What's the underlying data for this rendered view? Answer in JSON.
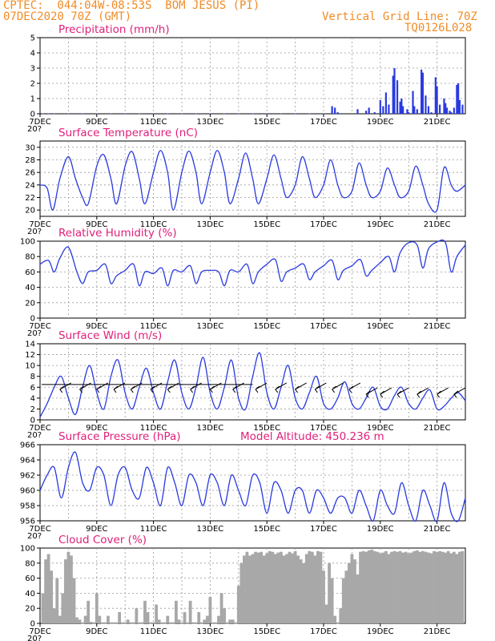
{
  "header": {
    "line1": "CPTEC:  044:04W-08:53S  BOM JESUS (PI)",
    "line2_left": "07DEC2020 70Z (GMT)",
    "line2_right": "Vertical Grid Line: 70Z",
    "line3_right": "TQ0126L028"
  },
  "colors": {
    "accent": "#f08c28",
    "title": "#e0207a",
    "series": "#2a3adf",
    "cloud": "#a8a8a8"
  },
  "x_tick_labels": [
    "7DEC",
    "9DEC",
    "11DEC",
    "13DEC",
    "15DEC",
    "17DEC",
    "19DEC",
    "21DEC"
  ],
  "panel_corner_label": "20?",
  "chart_data": [
    {
      "type": "bar",
      "title": "Precipitation (mm/h)",
      "ylim": [
        0,
        5
      ],
      "yticks": [
        0,
        1,
        2,
        3,
        4,
        5
      ],
      "x_unit": "days since 7DEC 00Z",
      "x": [
        0.1,
        0.3,
        0.5,
        1.0,
        1.5,
        2.0,
        2.5,
        3.0,
        3.5,
        4.0,
        4.5,
        5.0,
        5.5,
        6.0,
        6.5,
        7.0,
        7.5,
        8.0,
        8.5,
        9.0,
        9.5,
        10.0,
        10.3,
        10.4,
        10.5,
        11.2,
        11.5,
        11.6,
        11.8,
        12.0,
        12.1,
        12.2,
        12.3,
        12.45,
        12.5,
        12.6,
        12.7,
        12.75,
        12.8,
        12.95,
        13.0,
        13.15,
        13.2,
        13.3,
        13.45,
        13.5,
        13.6,
        13.7,
        13.8,
        13.95,
        14.0,
        14.1,
        14.25,
        14.3,
        14.35,
        14.45,
        14.5,
        14.6,
        14.7,
        14.75,
        14.8,
        14.9
      ],
      "values": [
        0.02,
        0.02,
        0.02,
        0.02,
        0.02,
        0.02,
        0.02,
        0.02,
        0.02,
        0.02,
        0.02,
        0.02,
        0.02,
        0.02,
        0.02,
        0.02,
        0.02,
        0.02,
        0.02,
        0.02,
        0.02,
        0.02,
        0.5,
        0.4,
        0.1,
        0.3,
        0.2,
        0.4,
        0.1,
        0.9,
        0.5,
        1.4,
        0.6,
        2.5,
        3.0,
        2.2,
        0.8,
        1.0,
        0.5,
        0.3,
        0.1,
        1.5,
        0.5,
        0.3,
        2.9,
        2.7,
        1.2,
        0.5,
        0.1,
        2.4,
        1.8,
        0.6,
        1.0,
        0.7,
        0.4,
        0.2,
        0.1,
        0.4,
        1.9,
        2.0,
        0.9,
        0.6
      ],
      "xlim": [
        0,
        15
      ]
    },
    {
      "type": "line",
      "title": "Surface Temperature (nC)",
      "ylim": [
        19,
        31
      ],
      "yticks": [
        20,
        22,
        24,
        26,
        28,
        30
      ],
      "x_unit": "days since 7DEC 00Z",
      "x": [
        0.0,
        0.25,
        0.45,
        0.7,
        1.0,
        1.25,
        1.5,
        1.7,
        2.0,
        2.25,
        2.5,
        2.7,
        3.0,
        3.25,
        3.5,
        3.7,
        4.0,
        4.25,
        4.5,
        4.7,
        5.0,
        5.25,
        5.5,
        5.7,
        6.0,
        6.25,
        6.5,
        6.7,
        7.0,
        7.25,
        7.5,
        7.7,
        8.0,
        8.25,
        8.5,
        8.7,
        9.0,
        9.25,
        9.5,
        9.7,
        10.0,
        10.25,
        10.5,
        10.7,
        11.0,
        11.25,
        11.5,
        11.7,
        12.0,
        12.25,
        12.5,
        12.7,
        13.0,
        13.25,
        13.5,
        13.7,
        14.0,
        14.25,
        14.5,
        14.7,
        15.0
      ],
      "values": [
        24,
        23.5,
        20,
        25,
        28.5,
        25,
        22,
        21,
        27,
        28.8,
        25,
        21,
        27,
        29.3,
        25,
        21,
        26,
        29.5,
        26,
        20,
        26,
        29.4,
        26,
        21,
        26,
        29.5,
        26,
        21,
        25,
        29.1,
        25,
        21,
        25,
        28.8,
        25,
        22,
        24,
        28.5,
        25,
        22,
        24,
        28,
        24,
        22,
        23,
        27.5,
        24,
        22,
        23,
        26.7,
        24,
        22,
        23,
        27,
        24,
        21,
        20,
        26.8,
        24,
        23,
        24
      ]
    },
    {
      "type": "line",
      "title": "Relative Humidity (%)",
      "ylim": [
        0,
        100
      ],
      "yticks": [
        0,
        20,
        40,
        60,
        80,
        100
      ],
      "x_unit": "days since 7DEC 00Z",
      "x": [
        0.0,
        0.3,
        0.5,
        0.7,
        1.0,
        1.3,
        1.5,
        1.7,
        2.0,
        2.3,
        2.5,
        2.7,
        3.0,
        3.3,
        3.5,
        3.7,
        4.0,
        4.3,
        4.5,
        4.7,
        5.0,
        5.3,
        5.5,
        5.7,
        6.0,
        6.3,
        6.5,
        6.7,
        7.0,
        7.3,
        7.5,
        7.7,
        8.0,
        8.3,
        8.5,
        8.7,
        9.0,
        9.3,
        9.5,
        9.7,
        10.0,
        10.3,
        10.5,
        10.7,
        11.0,
        11.3,
        11.5,
        11.7,
        12.0,
        12.3,
        12.5,
        12.7,
        13.0,
        13.3,
        13.5,
        13.7,
        14.0,
        14.3,
        14.5,
        14.7,
        15.0
      ],
      "values": [
        70,
        75,
        60,
        78,
        92,
        60,
        45,
        60,
        62,
        70,
        45,
        55,
        62,
        70,
        42,
        60,
        58,
        65,
        42,
        62,
        60,
        68,
        45,
        60,
        62,
        60,
        42,
        62,
        60,
        70,
        45,
        60,
        70,
        76,
        48,
        60,
        65,
        70,
        50,
        60,
        68,
        75,
        50,
        62,
        68,
        76,
        55,
        62,
        72,
        80,
        60,
        85,
        98,
        95,
        65,
        90,
        99,
        98,
        60,
        80,
        95
      ]
    },
    {
      "type": "line",
      "title": "Surface Wind (m/s)",
      "ylim": [
        0,
        14
      ],
      "yticks": [
        0,
        2,
        4,
        6,
        8,
        10,
        12,
        14
      ],
      "x_unit": "days since 7DEC 00Z",
      "x": [
        0.0,
        0.25,
        0.5,
        0.75,
        1.0,
        1.25,
        1.5,
        1.75,
        2.0,
        2.25,
        2.5,
        2.75,
        3.0,
        3.25,
        3.5,
        3.75,
        4.0,
        4.25,
        4.5,
        4.75,
        5.0,
        5.25,
        5.5,
        5.75,
        6.0,
        6.25,
        6.5,
        6.75,
        7.0,
        7.25,
        7.5,
        7.75,
        8.0,
        8.25,
        8.5,
        8.75,
        9.0,
        9.25,
        9.5,
        9.75,
        10.0,
        10.25,
        10.5,
        10.75,
        11.0,
        11.25,
        11.5,
        11.75,
        12.0,
        12.25,
        12.5,
        12.75,
        13.0,
        13.25,
        13.5,
        13.75,
        14.0,
        14.25,
        14.5,
        14.75,
        15.0
      ],
      "values": [
        0.5,
        3,
        6,
        8,
        4,
        1,
        6,
        10,
        5,
        2,
        8,
        11,
        5,
        2,
        6,
        9.5,
        5,
        2,
        7,
        11,
        5,
        2,
        6,
        11.5,
        5,
        2,
        6,
        11,
        4,
        2,
        8,
        12.3,
        5,
        2,
        6,
        10,
        4,
        2,
        5,
        8,
        3,
        2,
        4,
        7,
        3,
        2,
        4,
        6,
        2.5,
        2,
        4.5,
        6,
        3,
        2,
        4,
        5.5,
        2,
        2.5,
        4,
        5,
        3.5
      ],
      "barb_x": [
        0.7,
        1.4,
        2.0,
        2.6,
        3.2,
        3.9,
        4.5,
        5.3,
        6.0,
        6.8,
        7.6,
        8.3,
        9.0,
        9.7,
        10.3,
        10.9,
        11.5,
        12.0,
        12.6,
        13.3,
        14.0,
        14.6
      ]
    },
    {
      "type": "line",
      "title": "Surface Pressure (hPa)",
      "annotation": "Model Altitude: 450.236 m",
      "ylim": [
        956,
        966
      ],
      "yticks": [
        956,
        958,
        960,
        962,
        964,
        966
      ],
      "x_unit": "days since 7DEC 00Z",
      "x": [
        0.0,
        0.25,
        0.5,
        0.75,
        1.0,
        1.25,
        1.5,
        1.75,
        2.0,
        2.25,
        2.5,
        2.75,
        3.0,
        3.25,
        3.5,
        3.75,
        4.0,
        4.25,
        4.5,
        4.75,
        5.0,
        5.25,
        5.5,
        5.75,
        6.0,
        6.25,
        6.5,
        6.75,
        7.0,
        7.25,
        7.5,
        7.75,
        8.0,
        8.25,
        8.5,
        8.75,
        9.0,
        9.25,
        9.5,
        9.75,
        10.0,
        10.25,
        10.5,
        10.75,
        11.0,
        11.25,
        11.5,
        11.75,
        12.0,
        12.25,
        12.5,
        12.75,
        13.0,
        13.25,
        13.5,
        13.75,
        14.0,
        14.25,
        14.5,
        14.75,
        15.0
      ],
      "values": [
        960,
        962,
        963,
        959,
        963,
        965,
        961,
        960,
        963,
        962,
        958,
        962,
        963,
        960,
        959,
        963,
        961,
        958,
        963,
        961,
        958,
        962,
        961,
        958,
        962,
        961,
        958,
        962,
        960,
        958,
        962,
        961,
        957,
        961,
        960,
        957,
        960,
        960,
        957,
        960,
        959,
        957,
        959,
        959,
        957,
        960,
        958,
        956,
        960,
        958,
        957,
        961,
        958,
        956,
        960,
        958,
        956,
        961,
        957,
        956,
        959
      ]
    },
    {
      "type": "bar",
      "title": "Cloud Cover (%)",
      "ylim": [
        0,
        100
      ],
      "yticks": [
        0,
        20,
        40,
        60,
        80,
        100
      ],
      "x_unit": "days since 7DEC 00Z",
      "x": [
        0.1,
        0.2,
        0.3,
        0.4,
        0.5,
        0.6,
        0.7,
        0.8,
        0.9,
        1.0,
        1.1,
        1.2,
        1.3,
        1.4,
        1.5,
        1.6,
        1.7,
        1.8,
        1.9,
        2.0,
        2.1,
        2.2,
        2.3,
        2.4,
        2.5,
        2.6,
        2.7,
        2.8,
        2.9,
        3.0,
        3.1,
        3.2,
        3.3,
        3.4,
        3.5,
        3.6,
        3.7,
        3.8,
        3.9,
        4.0,
        4.1,
        4.2,
        4.3,
        4.4,
        4.5,
        4.6,
        4.7,
        4.8,
        4.9,
        5.0,
        5.1,
        5.2,
        5.3,
        5.4,
        5.5,
        5.6,
        5.7,
        5.8,
        5.9,
        6.0,
        6.1,
        6.2,
        6.3,
        6.4,
        6.5,
        6.6,
        6.7,
        6.8,
        6.9,
        7.0,
        7.1,
        7.2,
        7.3,
        7.4,
        7.5,
        7.6,
        7.7,
        7.8,
        7.9,
        8.0,
        8.1,
        8.2,
        8.3,
        8.4,
        8.5,
        8.6,
        8.7,
        8.8,
        8.9,
        9.0,
        9.1,
        9.2,
        9.3,
        9.4,
        9.5,
        9.6,
        9.7,
        9.8,
        9.9,
        10.0,
        10.1,
        10.2,
        10.3,
        10.4,
        10.5,
        10.6,
        10.7,
        10.8,
        10.9,
        11.0,
        11.1,
        11.2,
        11.3,
        11.4,
        11.5,
        11.6,
        11.7,
        11.8,
        11.9,
        12.0,
        12.1,
        12.2,
        12.3,
        12.4,
        12.5,
        12.6,
        12.7,
        12.8,
        12.9,
        13.0,
        13.1,
        13.2,
        13.3,
        13.4,
        13.5,
        13.6,
        13.7,
        13.8,
        13.9,
        14.0,
        14.1,
        14.2,
        14.3,
        14.4,
        14.5,
        14.6,
        14.7,
        14.8,
        14.9
      ],
      "values": [
        40,
        85,
        92,
        70,
        20,
        60,
        10,
        40,
        85,
        95,
        90,
        60,
        8,
        5,
        0,
        10,
        30,
        2,
        0,
        40,
        10,
        0,
        0,
        10,
        0,
        0,
        0,
        15,
        0,
        0,
        5,
        0,
        0,
        20,
        0,
        0,
        30,
        15,
        0,
        0,
        25,
        5,
        0,
        0,
        10,
        0,
        0,
        30,
        5,
        0,
        15,
        0,
        30,
        0,
        0,
        15,
        0,
        5,
        10,
        35,
        0,
        0,
        10,
        40,
        20,
        0,
        5,
        5,
        0,
        50,
        80,
        90,
        95,
        90,
        92,
        95,
        94,
        95,
        90,
        93,
        96,
        95,
        92,
        94,
        95,
        90,
        92,
        95,
        93,
        96,
        90,
        85,
        80,
        92,
        96,
        95,
        90,
        96,
        95,
        70,
        25,
        80,
        60,
        10,
        0,
        20,
        60,
        70,
        80,
        92,
        85,
        65,
        95,
        96,
        95,
        97,
        98,
        96,
        95,
        93,
        94,
        96,
        92,
        95,
        96,
        95,
        96,
        94,
        95,
        93,
        94,
        96,
        97,
        95,
        96,
        95,
        94,
        93,
        96,
        95,
        96,
        95,
        94,
        96,
        93,
        95,
        92,
        95,
        96
      ]
    }
  ]
}
